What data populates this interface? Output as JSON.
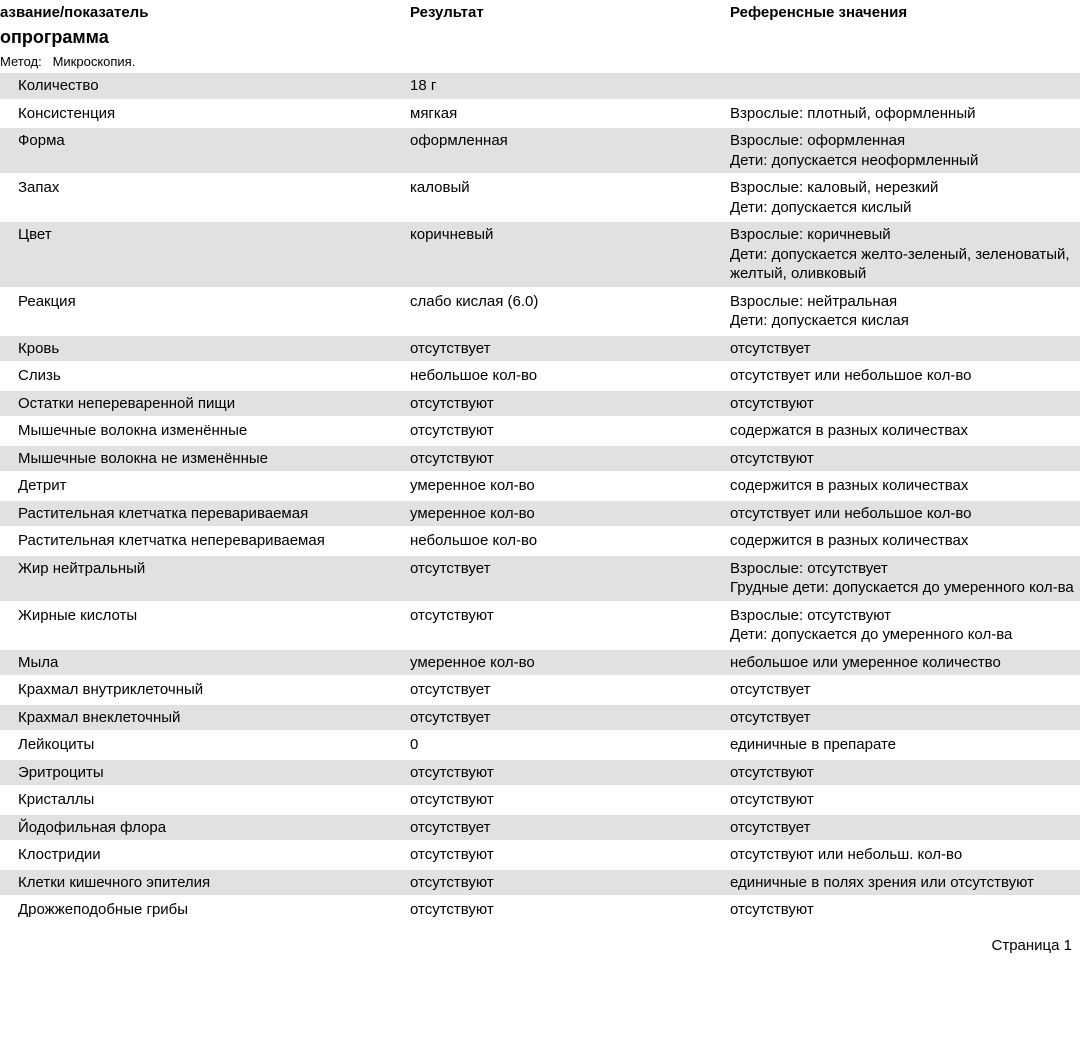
{
  "headers": {
    "name": "азвание/показатель",
    "result": "Результат",
    "reference": "Референсные значения"
  },
  "section_title": "опрограмма",
  "method_label": "Метод:",
  "method_value": "Микроскопия.",
  "rows": [
    {
      "name": "Количество",
      "result": "18 г",
      "ref": [],
      "shaded": true
    },
    {
      "name": "Консистенция",
      "result": "мягкая",
      "ref": [
        "Взрослые: плотный, оформленный"
      ],
      "shaded": false
    },
    {
      "name": "Форма",
      "result": "оформленная",
      "ref": [
        "Взрослые: оформленная",
        " Дети: допускается неоформленный"
      ],
      "shaded": true
    },
    {
      "name": "Запах",
      "result": "каловый",
      "ref": [
        "Взрослые: каловый, нерезкий",
        "Дети: допускается кислый"
      ],
      "shaded": false
    },
    {
      "name": "Цвет",
      "result": "коричневый",
      "ref": [
        "Взрослые: коричневый",
        "Дети: допускается желто-зеленый, зеленоватый, желтый, оливковый"
      ],
      "shaded": true
    },
    {
      "name": "Реакция",
      "result": "слабо кислая (6.0)",
      "ref": [
        "Взрослые: нейтральная",
        "Дети: допускается кислая"
      ],
      "shaded": false
    },
    {
      "name": "Кровь",
      "result": "отсутствует",
      "ref": [
        "отсутствует"
      ],
      "shaded": true
    },
    {
      "name": "Слизь",
      "result": "небольшое кол-во",
      "ref": [
        "отсутствует или небольшое кол-во"
      ],
      "shaded": false
    },
    {
      "name": "Остатки непереваренной пищи",
      "result": "отсутствуют",
      "ref": [
        "отсутствуют"
      ],
      "shaded": true
    },
    {
      "name": "Мышечные волокна изменённые",
      "result": "отсутствуют",
      "ref": [
        "содержатся в разных количествах"
      ],
      "shaded": false
    },
    {
      "name": "Мышечные волокна не изменённые",
      "result": "отсутствуют",
      "ref": [
        "отсутствуют"
      ],
      "shaded": true
    },
    {
      "name": "Детрит",
      "result": "умеренное кол-во",
      "ref": [
        "содержится в разных количествах"
      ],
      "shaded": false
    },
    {
      "name": "Растительная клетчатка перевариваемая",
      "result": "умеренное кол-во",
      "ref": [
        "отсутствует или небольшое кол-во"
      ],
      "shaded": true
    },
    {
      "name": "Растительная клетчатка неперевариваемая",
      "result": "небольшое кол-во",
      "ref": [
        "содержится в разных количествах"
      ],
      "shaded": false
    },
    {
      "name": "Жир нейтральный",
      "result": "отсутствует",
      "ref": [
        "Взрослые: отсутствует",
        "Грудные дети: допускается до умеренного кол-ва"
      ],
      "shaded": true
    },
    {
      "name": "Жирные кислоты",
      "result": "отсутствуют",
      "ref": [
        "Взрослые: отсутствуют",
        " Дети: допускается до умеренного кол-ва"
      ],
      "shaded": false
    },
    {
      "name": "Мыла",
      "result": "умеренное кол-во",
      "ref": [
        "небольшое или умеренное количество"
      ],
      "shaded": true
    },
    {
      "name": "Крахмал внутриклеточный",
      "result": "отсутствует",
      "ref": [
        "отсутствует"
      ],
      "shaded": false
    },
    {
      "name": "Крахмал внеклеточный",
      "result": "отсутствует",
      "ref": [
        "отсутствует"
      ],
      "shaded": true
    },
    {
      "name": "Лейкоциты",
      "result": "0",
      "ref": [
        "единичные в препарате"
      ],
      "shaded": false
    },
    {
      "name": "Эритроциты",
      "result": "отсутствуют",
      "ref": [
        "отсутствуют"
      ],
      "shaded": true
    },
    {
      "name": "Кристаллы",
      "result": "отсутствуют",
      "ref": [
        "отсутствуют"
      ],
      "shaded": false
    },
    {
      "name": "Йодофильная флора",
      "result": "отсутствует",
      "ref": [
        "отсутствует"
      ],
      "shaded": true
    },
    {
      "name": "Клостридии",
      "result": "отсутствуют",
      "ref": [
        "отсутствуют или небольш. кол-во"
      ],
      "shaded": false
    },
    {
      "name": "Клетки кишечного эпителия",
      "result": "отсутствуют",
      "ref": [
        "единичные в полях зрения или отсутствуют"
      ],
      "shaded": true
    },
    {
      "name": "Дрожжеподобные грибы",
      "result": "отсутствуют",
      "ref": [
        "отсутствуют"
      ],
      "shaded": false
    }
  ],
  "page_footer": "Страница 1"
}
